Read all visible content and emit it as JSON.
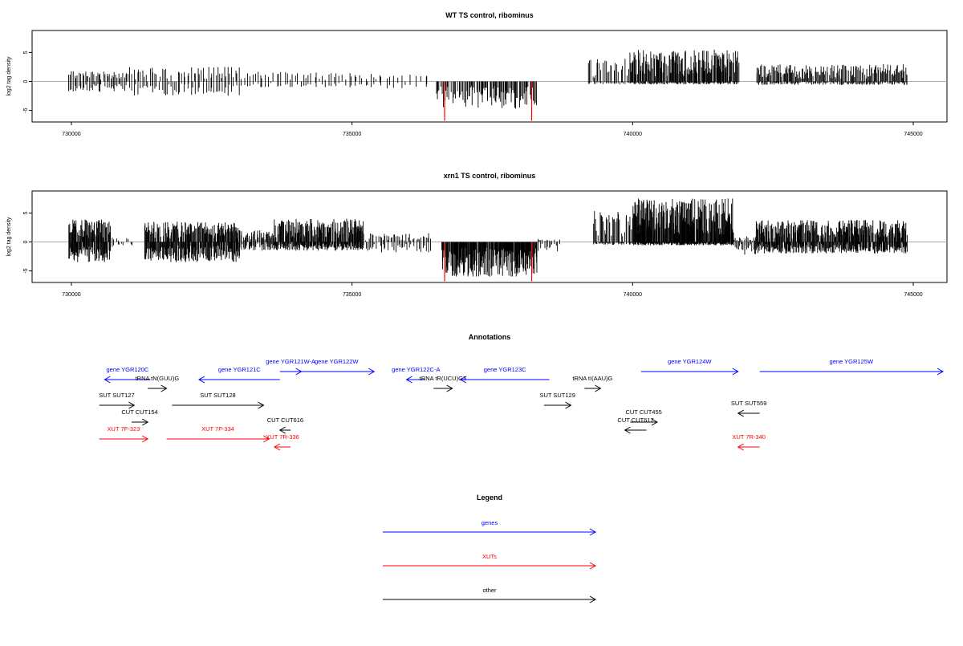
{
  "colors": {
    "gene": "#0000ff",
    "xut": "#ff0000",
    "other": "#000000",
    "axis": "#000000",
    "highlight": "#ff0000"
  },
  "chart_data": [
    {
      "type": "bar",
      "title": "WT TS control, ribominus",
      "ylabel": "log2 tag density",
      "xlim": [
        729300,
        745600
      ],
      "ylim": [
        -7,
        8.8
      ],
      "x_ticks": [
        730000,
        735000,
        740000,
        745000
      ],
      "y_ticks": [
        -5,
        0,
        5
      ],
      "tracks": [
        {
          "type": "bars",
          "start": 729950,
          "end": 731000,
          "density": 0.6,
          "pos_max": 1.8,
          "neg_max": 1.8
        },
        {
          "type": "bars",
          "start": 731000,
          "end": 733000,
          "density": 0.45,
          "pos_max": 2.5,
          "neg_max": 2.5
        },
        {
          "type": "bars",
          "start": 733000,
          "end": 734500,
          "density": 0.3,
          "pos_max": 1.8,
          "neg_max": 1.0
        },
        {
          "type": "bars",
          "start": 734500,
          "end": 735500,
          "density": 0.3,
          "pos_max": 1.6,
          "neg_max": 1.0
        },
        {
          "type": "bars",
          "start": 735500,
          "end": 736400,
          "density": 0.2,
          "pos_max": 1.2,
          "neg_max": 1.2
        },
        {
          "type": "bars",
          "start": 736500,
          "end": 738300,
          "density": 1.0,
          "pos_max": 0.0,
          "neg_max": 4.8
        },
        {
          "type": "bars",
          "start": 739200,
          "end": 739950,
          "density": 0.6,
          "pos_max": 4.0,
          "neg_max": 0.5
        },
        {
          "type": "bars",
          "start": 739950,
          "end": 741900,
          "density": 1.4,
          "pos_max": 5.5,
          "neg_max": 0.5
        },
        {
          "type": "bars",
          "start": 742200,
          "end": 744900,
          "density": 1.0,
          "pos_max": 3.0,
          "neg_max": 0.6
        }
      ],
      "highlights": [
        {
          "x": 736650,
          "low": -6.8,
          "high": 0
        },
        {
          "x": 738200,
          "low": -6.8,
          "high": 0
        }
      ]
    },
    {
      "type": "bar",
      "title": "xrn1 TS control, ribominus",
      "ylabel": "log2 tag density",
      "xlim": [
        729300,
        745600
      ],
      "ylim": [
        -7,
        8.8
      ],
      "x_ticks": [
        730000,
        735000,
        740000,
        745000
      ],
      "y_ticks": [
        -5,
        0,
        5
      ],
      "tracks": [
        {
          "type": "bars",
          "start": 729950,
          "end": 730700,
          "density": 1.6,
          "pos_max": 4.0,
          "neg_max": 3.5
        },
        {
          "type": "bars",
          "start": 730700,
          "end": 731100,
          "density": 0.4,
          "pos_max": 0.8,
          "neg_max": 1.0
        },
        {
          "type": "bars",
          "start": 731300,
          "end": 733000,
          "density": 1.6,
          "pos_max": 3.5,
          "neg_max": 3.5
        },
        {
          "type": "bars",
          "start": 733000,
          "end": 733600,
          "density": 1.0,
          "pos_max": 2.0,
          "neg_max": 1.5
        },
        {
          "type": "bars",
          "start": 733600,
          "end": 735200,
          "density": 1.6,
          "pos_max": 4.0,
          "neg_max": 1.5
        },
        {
          "type": "bars",
          "start": 735200,
          "end": 736400,
          "density": 0.6,
          "pos_max": 1.5,
          "neg_max": 1.8
        },
        {
          "type": "bars",
          "start": 736600,
          "end": 738300,
          "density": 2.0,
          "pos_max": 0.0,
          "neg_max": 6.0
        },
        {
          "type": "bars",
          "start": 738300,
          "end": 738700,
          "density": 0.5,
          "pos_max": 0.5,
          "neg_max": 2.0
        },
        {
          "type": "bars",
          "start": 739300,
          "end": 740000,
          "density": 1.0,
          "pos_max": 5.5,
          "neg_max": 0.5
        },
        {
          "type": "bars",
          "start": 740000,
          "end": 741800,
          "density": 2.2,
          "pos_max": 7.5,
          "neg_max": 0.6
        },
        {
          "type": "bars",
          "start": 741800,
          "end": 742200,
          "density": 0.8,
          "pos_max": 1.0,
          "neg_max": 2.2
        },
        {
          "type": "bars",
          "start": 742200,
          "end": 744900,
          "density": 1.6,
          "pos_max": 3.8,
          "neg_max": 2.0
        }
      ],
      "highlights": [
        {
          "x": 736650,
          "low": -6.8,
          "high": 0
        },
        {
          "x": 738200,
          "low": -6.8,
          "high": 0
        }
      ]
    },
    {
      "type": "annotation",
      "title": "Annotations",
      "xlim": [
        729300,
        745600
      ],
      "features": [
        {
          "label": "gene YGR120C",
          "kind": "gene",
          "start": 730050,
          "end": 730900,
          "strand": "-",
          "row": 1
        },
        {
          "label": "tRNA tN(GUU)G",
          "kind": "other",
          "start": 730850,
          "end": 731200,
          "strand": "+",
          "row": 2
        },
        {
          "label": "gene YGR121C",
          "kind": "gene",
          "start": 731800,
          "end": 733300,
          "strand": "-",
          "row": 1
        },
        {
          "label": "gene YGR121W-A",
          "kind": "gene",
          "start": 733300,
          "end": 733700,
          "strand": "+",
          "row": 0
        },
        {
          "label": "gene YGR122W",
          "kind": "gene",
          "start": 733650,
          "end": 735050,
          "strand": "+",
          "row": 0
        },
        {
          "label": "gene YGR122C-A",
          "kind": "gene",
          "start": 735650,
          "end": 736000,
          "strand": "-",
          "row": 1
        },
        {
          "label": "tRNA tR(UCU)G3",
          "kind": "other",
          "start": 736150,
          "end": 736500,
          "strand": "+",
          "row": 2
        },
        {
          "label": "gene YGR123C",
          "kind": "gene",
          "start": 736650,
          "end": 738300,
          "strand": "-",
          "row": 1
        },
        {
          "label": "tRNA tI(AAU)G",
          "kind": "other",
          "start": 738950,
          "end": 739250,
          "strand": "+",
          "row": 2
        },
        {
          "label": "gene YGR124W",
          "kind": "gene",
          "start": 740000,
          "end": 741800,
          "strand": "+",
          "row": 0
        },
        {
          "label": "gene YGR125W",
          "kind": "gene",
          "start": 742200,
          "end": 745600,
          "strand": "+",
          "row": 0
        },
        {
          "label": "SUT SUT127",
          "kind": "other",
          "start": 729950,
          "end": 730600,
          "strand": "+",
          "row": 3
        },
        {
          "label": "SUT SUT128",
          "kind": "other",
          "start": 731300,
          "end": 733000,
          "strand": "+",
          "row": 3
        },
        {
          "label": "SUT SUT129",
          "kind": "other",
          "start": 738200,
          "end": 738700,
          "strand": "+",
          "row": 3
        },
        {
          "label": "SUT SUT559",
          "kind": "other",
          "start": 741800,
          "end": 742200,
          "strand": "-",
          "row": 4
        },
        {
          "label": "CUT CUT154",
          "kind": "other",
          "start": 730550,
          "end": 730850,
          "strand": "+",
          "row": 5
        },
        {
          "label": "CUT CUT455",
          "kind": "other",
          "start": 739800,
          "end": 740300,
          "strand": "+",
          "row": 5
        },
        {
          "label": "CUT CUT616",
          "kind": "other",
          "start": 733300,
          "end": 733500,
          "strand": "-",
          "row": 6
        },
        {
          "label": "CUT CUT617",
          "kind": "other",
          "start": 739700,
          "end": 740100,
          "strand": "-",
          "row": 6
        },
        {
          "label": "XUT 7F-323",
          "kind": "xut",
          "start": 729950,
          "end": 730850,
          "strand": "+",
          "row": 7
        },
        {
          "label": "XUT 7F-334",
          "kind": "xut",
          "start": 731200,
          "end": 733100,
          "strand": "+",
          "row": 7
        },
        {
          "label": "XUT 7R-336",
          "kind": "xut",
          "start": 733200,
          "end": 733500,
          "strand": "-",
          "row": 8
        },
        {
          "label": "XUT 7R-340",
          "kind": "xut",
          "start": 741800,
          "end": 742200,
          "strand": "-",
          "row": 8
        }
      ]
    },
    {
      "type": "legend",
      "title": "Legend",
      "entries": [
        {
          "label": "genes",
          "kind": "gene"
        },
        {
          "label": "XUTs",
          "kind": "xut"
        },
        {
          "label": "other",
          "kind": "other"
        }
      ]
    }
  ]
}
